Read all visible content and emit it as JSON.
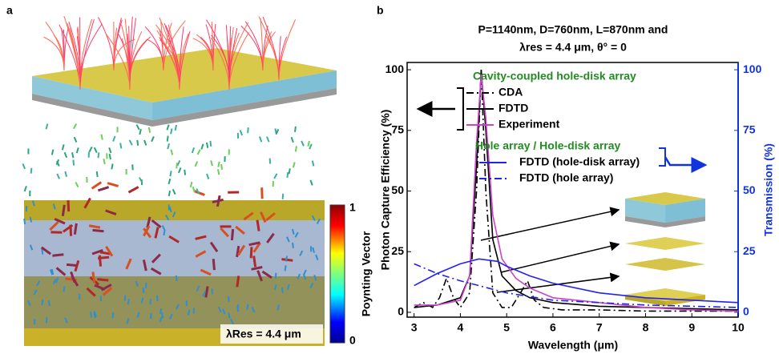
{
  "panel_a": {
    "label": "a",
    "colorbar_title": "Poynting Vector",
    "colorbar_max": "1",
    "colorbar_min": "0",
    "annotation": "λRes = 4.4 μm"
  },
  "chart_data": {
    "type": "line",
    "panel_label": "b",
    "title": "P=1140nm, D=760nm, L=870nm and",
    "subtitle": "λres = 4.4 μm, θ° = 0",
    "x_label": "Wavelength (μm)",
    "y_label": "Photon Capture Efficiency  (%)",
    "y2_label": "Transmission  (%)",
    "legend_groups": [
      "Cavity-coupled hole-disk array",
      "Hole array / Hole-disk array"
    ],
    "xlim": [
      2.85,
      10
    ],
    "xticks": [
      3,
      4,
      5,
      6,
      7,
      8,
      9,
      10
    ],
    "ylim": [
      -2,
      103
    ],
    "yticks": [
      0,
      25,
      50,
      75,
      100
    ],
    "y2lim": [
      -2,
      103
    ],
    "y2ticks": [
      0,
      25,
      50,
      75,
      100
    ],
    "series": [
      {
        "name": "CDA",
        "color": "#000000",
        "dash": "dashdot",
        "axis": "y",
        "legend_group": 0,
        "x": [
          3,
          3.2,
          3.4,
          3.55,
          3.7,
          3.85,
          4.0,
          4.2,
          4.35,
          4.45,
          4.55,
          4.7,
          4.9,
          5.1,
          5.3,
          5.45,
          5.6,
          5.8,
          6.2,
          7,
          8,
          9,
          10
        ],
        "values": [
          2,
          4,
          2,
          6,
          14,
          6,
          2,
          8,
          50,
          100,
          50,
          8,
          2,
          2,
          8,
          13,
          5,
          2,
          1,
          1,
          0.5,
          0.5,
          0.5
        ]
      },
      {
        "name": "FDTD",
        "color": "#000000",
        "dash": "solid",
        "axis": "y",
        "legend_group": 0,
        "x": [
          3,
          3.5,
          4,
          4.2,
          4.35,
          4.45,
          4.55,
          4.7,
          4.9,
          5.2,
          5.5,
          6,
          7,
          8,
          9,
          10
        ],
        "values": [
          2,
          3,
          6,
          15,
          60,
          100,
          75,
          30,
          15,
          9,
          6,
          4,
          2.5,
          2,
          1.5,
          1
        ]
      },
      {
        "name": "Experiment",
        "color": "#cc44cc",
        "dash": "solid",
        "axis": "y",
        "legend_group": 0,
        "x": [
          3,
          3.5,
          4,
          4.2,
          4.35,
          4.45,
          4.55,
          4.7,
          4.9,
          5.2,
          5.5,
          6,
          7,
          7.5,
          8,
          9,
          10
        ],
        "values": [
          3,
          3,
          5,
          15,
          70,
          98,
          80,
          40,
          22,
          14,
          10,
          6,
          4,
          3,
          2,
          1,
          0.5
        ]
      },
      {
        "name": "FDTD (hole-disk  array)",
        "color": "#2222ee",
        "dash": "solid",
        "axis": "y2",
        "legend_group": 1,
        "x": [
          3,
          3.5,
          4,
          4.4,
          4.8,
          5,
          5.5,
          6,
          7,
          8,
          9,
          10
        ],
        "values": [
          11,
          16,
          20,
          22,
          21,
          19,
          15,
          12,
          8,
          6,
          5,
          4
        ]
      },
      {
        "name": "FDTD (hole array)",
        "color": "#2222ee",
        "dash": "dashdot",
        "axis": "y2",
        "legend_group": 1,
        "x": [
          3,
          3.5,
          4,
          5,
          6,
          7,
          8,
          9,
          10
        ],
        "values": [
          20,
          16,
          13,
          8,
          5,
          4,
          3,
          2.5,
          2
        ]
      }
    ]
  }
}
